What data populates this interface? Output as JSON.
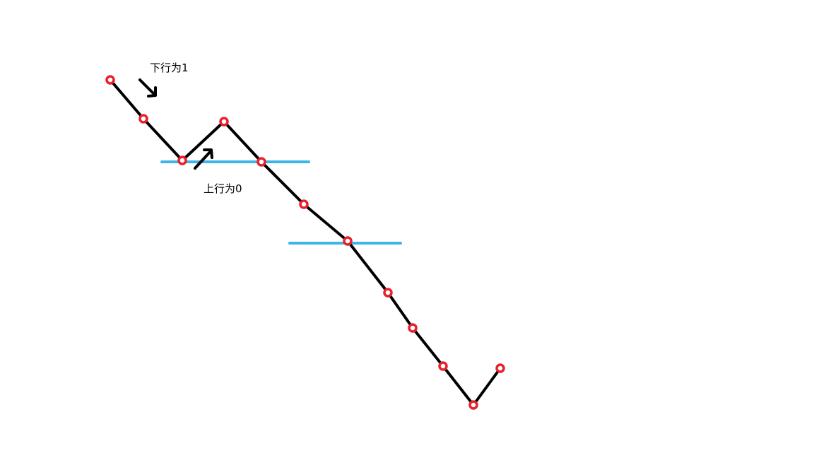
{
  "annotations": {
    "down_label": "下行为1",
    "up_label": "上行为0"
  },
  "colors": {
    "background": "#ffffff",
    "path_line": "#000000",
    "vertex_marker": "#e8202a",
    "reference_line": "#3fb4e8",
    "arrow": "#000000",
    "text": "#000000"
  },
  "icons": [
    "down-right-arrow-icon",
    "up-right-arrow-icon"
  ]
}
